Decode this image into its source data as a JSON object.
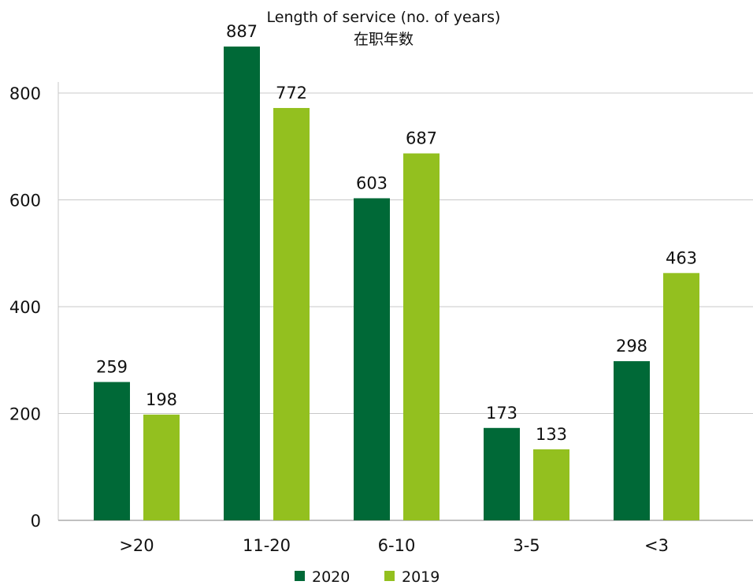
{
  "chart_data": {
    "type": "bar",
    "title": "Length of service (no. of years)",
    "subtitle": "在职年数",
    "xlabel": "",
    "ylabel": "",
    "ylim": [
      0,
      800
    ],
    "yticks": [
      0,
      200,
      400,
      600,
      800
    ],
    "grid": true,
    "legend_position": "bottom",
    "categories": [
      ">20",
      "11-20",
      "6-10",
      "3-5",
      "<3"
    ],
    "series": [
      {
        "name": "2020",
        "color": "#006937",
        "values": [
          259,
          887,
          603,
          173,
          298
        ]
      },
      {
        "name": "2019",
        "color": "#93c01f",
        "values": [
          198,
          772,
          687,
          133,
          463
        ]
      }
    ]
  }
}
